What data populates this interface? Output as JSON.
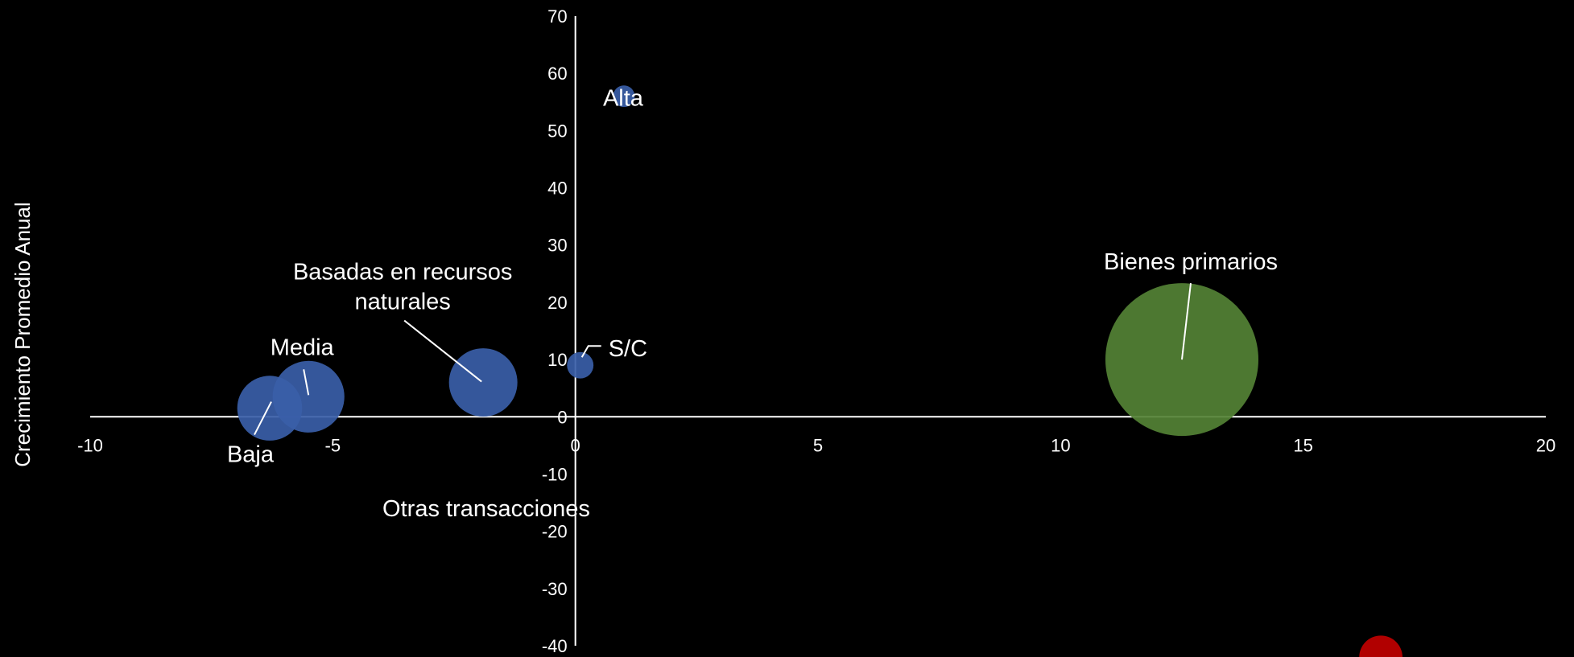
{
  "chart_data": {
    "type": "bubble",
    "ylabel": "Crecimiento Promedio Anual",
    "xlabel": "",
    "xlim": [
      -10,
      20
    ],
    "ylim": [
      -40,
      70
    ],
    "x_ticks": [
      -10,
      -5,
      0,
      5,
      10,
      15,
      20
    ],
    "y_ticks": [
      70,
      60,
      50,
      40,
      30,
      20,
      10,
      0,
      -10,
      -20,
      -30,
      -40
    ],
    "x_tick_labels": [
      "-10",
      "-5",
      "0",
      "5",
      "10",
      "15",
      "20"
    ],
    "y_tick_labels": [
      "70",
      "60",
      "50",
      "40",
      "30",
      "20",
      "10",
      "0",
      "-10",
      "-20",
      "-30",
      "-40"
    ],
    "grid": false,
    "colors": {
      "manufactures": "#3a5ea8",
      "primary": "#548235",
      "other": "#c00000",
      "axis": "#ffffff",
      "background": "#000000"
    },
    "points": [
      {
        "label": "Baja",
        "x": -6.3,
        "y": 1.5,
        "size": 18,
        "color": "#3a5ea8"
      },
      {
        "label": "Media",
        "x": -5.5,
        "y": 3.5,
        "size": 22,
        "color": "#3a5ea8"
      },
      {
        "label": "Basadas en recursos naturales",
        "label_lines": [
          "Basadas en recursos",
          "naturales"
        ],
        "x": -1.9,
        "y": 6,
        "size": 20,
        "color": "#3a5ea8"
      },
      {
        "label": "S/C",
        "x": 0.1,
        "y": 9,
        "size": 3,
        "color": "#3a5ea8"
      },
      {
        "label": "Alta",
        "x": 1.0,
        "y": 56,
        "size": 2,
        "color": "#3a5ea8"
      },
      {
        "label": "Bienes primarios",
        "x": 12.5,
        "y": 10,
        "size": 100,
        "color": "#548235"
      },
      {
        "label": "Otras transacciones",
        "x": 16.6,
        "y": -42,
        "size": 8,
        "color": "#c00000"
      }
    ]
  }
}
